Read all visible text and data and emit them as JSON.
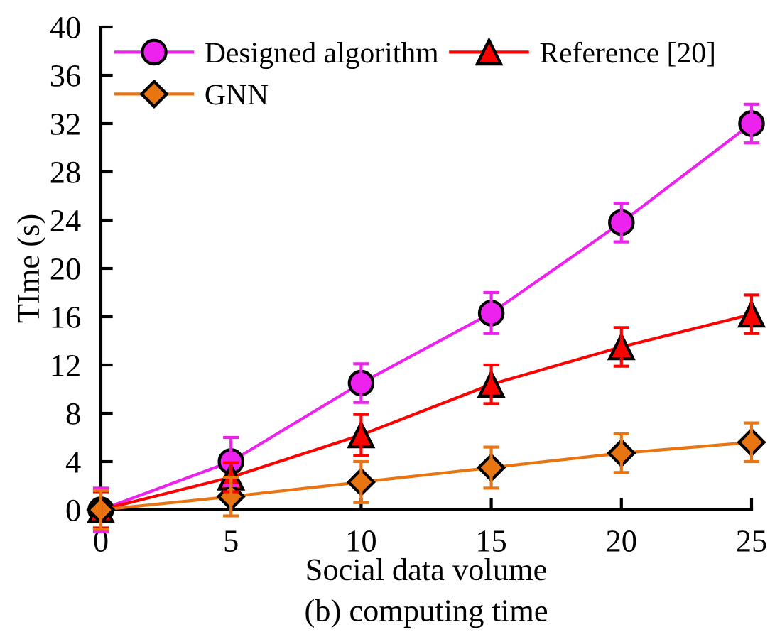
{
  "chart_data": {
    "type": "line",
    "title": "(b) computing time",
    "xlabel": "Social data volume",
    "ylabel": "TIme (s)",
    "x": [
      0,
      5,
      10,
      15,
      20,
      25
    ],
    "series": [
      {
        "name": "Designed algorithm",
        "color": "#ee22ee",
        "marker": "circle",
        "values": [
          0,
          4.0,
          10.5,
          16.3,
          23.8,
          32.0
        ],
        "errors": [
          1.8,
          2.0,
          1.6,
          1.7,
          1.6,
          1.6
        ]
      },
      {
        "name": "Reference [20]",
        "color": "#ff0000",
        "marker": "triangle",
        "values": [
          0,
          2.7,
          6.2,
          10.4,
          13.5,
          16.2
        ],
        "errors": [
          1.5,
          1.2,
          1.7,
          1.6,
          1.6,
          1.6
        ]
      },
      {
        "name": "GNN",
        "color": "#e87511",
        "marker": "diamond",
        "values": [
          0,
          1.1,
          2.3,
          3.5,
          4.7,
          5.6
        ],
        "errors": [
          1.6,
          1.6,
          1.7,
          1.7,
          1.6,
          1.6
        ]
      }
    ],
    "xlim": [
      0,
      25
    ],
    "xticks": [
      0,
      5,
      10,
      15,
      20,
      25
    ],
    "ylim": [
      0,
      40
    ],
    "yticks": [
      0,
      4,
      8,
      12,
      16,
      20,
      24,
      28,
      32,
      36,
      40
    ],
    "grid": false,
    "legend": "top left",
    "line_style": "solid"
  }
}
